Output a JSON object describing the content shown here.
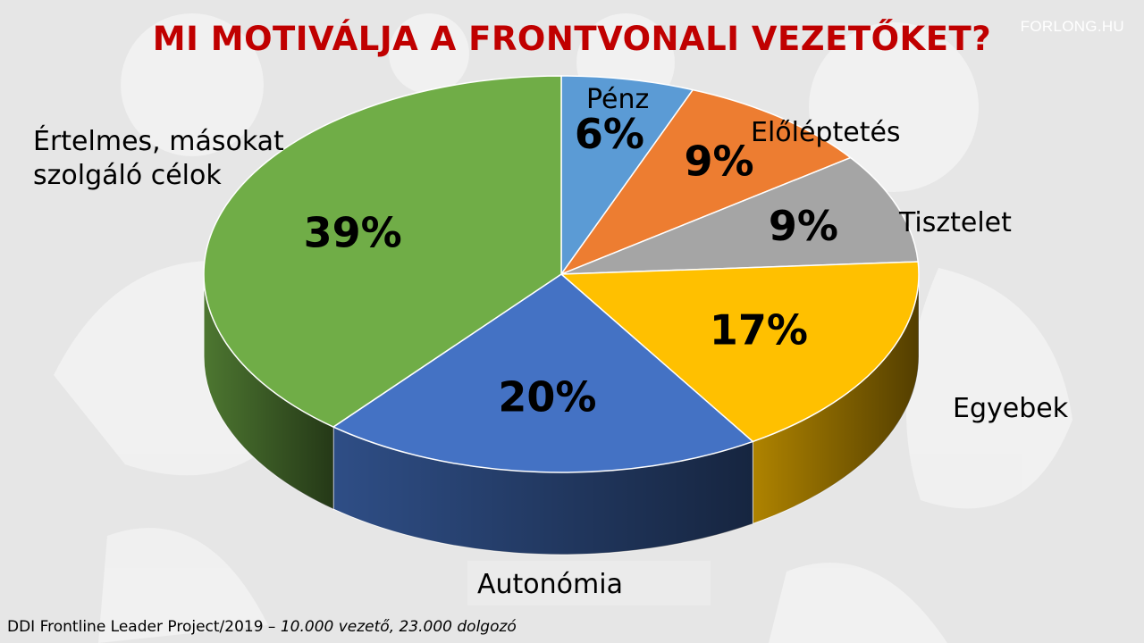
{
  "header": {
    "title": "MI MOTIVÁLJA A FRONTVONALI VEZETŐKET?",
    "brand": "FORLONG.HU"
  },
  "footer": {
    "source": "DDI Frontline Leader Project/2019",
    "dash": " – ",
    "detail": "10.000 vezető, 23.000 dolgozó"
  },
  "colors": {
    "title": "#c00000",
    "background": "#e6e6e6"
  },
  "chart_data": {
    "type": "pie",
    "style": "3d",
    "start_angle_deg": 0,
    "direction": "clockwise",
    "slices": [
      {
        "label": "Pénz",
        "value": 6,
        "display": "6%",
        "color": "#5b9bd5"
      },
      {
        "label": "Előléptetés",
        "value": 9,
        "display": "9%",
        "color": "#ed7d31"
      },
      {
        "label": "Tisztelet",
        "value": 9,
        "display": "9%",
        "color": "#a5a5a5"
      },
      {
        "label": "Egyebek",
        "value": 17,
        "display": "17%",
        "color": "#ffc000"
      },
      {
        "label": "Autonómia",
        "value": 20,
        "display": "20%",
        "color": "#4472c4"
      },
      {
        "label": "Értelmes, másokat szolgáló célok",
        "value": 39,
        "display": "39%",
        "color": "#70ad47"
      }
    ]
  }
}
